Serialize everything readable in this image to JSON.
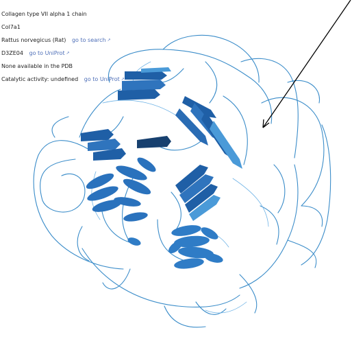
{
  "protein": {
    "name": "Collagen type VII alpha 1 chain",
    "gene": "Col7a1",
    "organism": "Rattus norvegicus (Rat)",
    "organism_link": "go to search",
    "accession": "D3ZE04",
    "accession_link": "go to UniProt",
    "pdb_status": "None available in the PDB",
    "activity": "Catalytic activity: undefined",
    "activity_link": "go to UniProt"
  },
  "icons": {
    "external_link": "external-link-icon",
    "pointer": "arrow-pointer-icon"
  },
  "colors": {
    "strand_dark": "#1f5fa6",
    "strand_light": "#4a9ad8",
    "loop": "#3a8cc9",
    "link": "#4e6fb8"
  }
}
